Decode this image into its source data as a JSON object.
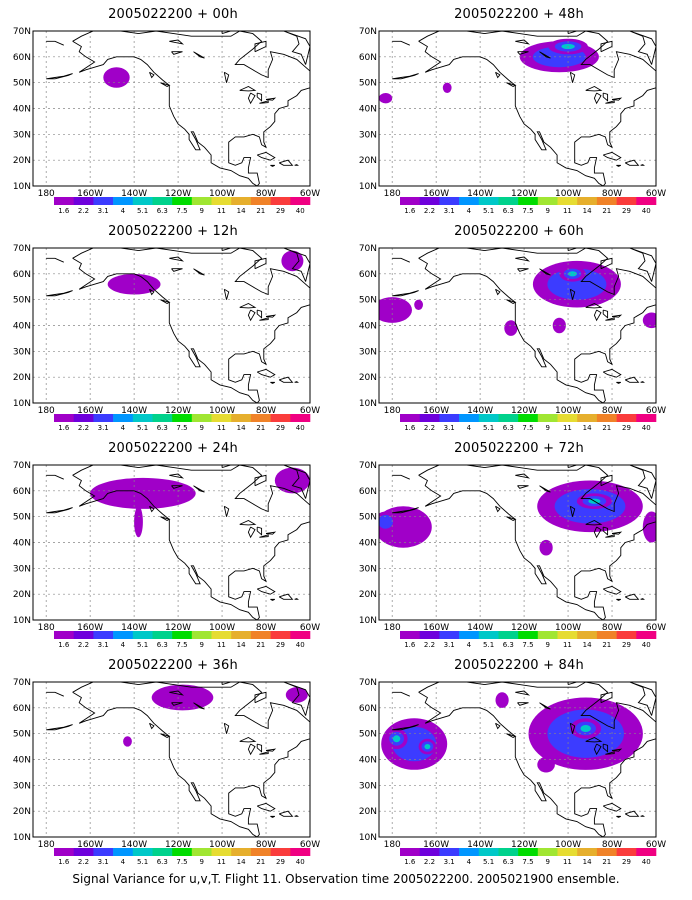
{
  "axes": {
    "lat_labels": [
      "70N",
      "60N",
      "50N",
      "40N",
      "30N",
      "20N",
      "10N"
    ],
    "lon_labels": [
      "180",
      "160W",
      "140W",
      "120W",
      "100W",
      "80W",
      "60W"
    ],
    "lon_range": [
      -186,
      -60
    ],
    "lat_range": [
      10,
      70
    ]
  },
  "colorbar": {
    "labels": [
      "1.6",
      "2.2",
      "3.1",
      "4",
      "5.1",
      "6.3",
      "7.5",
      "9",
      "11",
      "14",
      "21",
      "29",
      "40"
    ],
    "colors": [
      "#a000c8",
      "#6e00dc",
      "#3c3cff",
      "#0096ff",
      "#00c8c8",
      "#00d28c",
      "#00dc00",
      "#a0e632",
      "#e6dc32",
      "#e6af2d",
      "#f08228",
      "#fa3c3c",
      "#f00082"
    ]
  },
  "chart_data": [
    {
      "type": "heatmap",
      "title": "2005022200 + 00h",
      "blobs": [
        [
          -148,
          52,
          6,
          4,
          1
        ]
      ]
    },
    {
      "type": "heatmap",
      "title": "2005022200 + 48h",
      "blobs": [
        [
          -104,
          60,
          18,
          6,
          2
        ],
        [
          -100,
          64,
          9,
          3,
          3
        ],
        [
          -183,
          44,
          3,
          2,
          1
        ],
        [
          -155,
          48,
          2,
          2,
          1
        ]
      ]
    },
    {
      "type": "heatmap",
      "title": "2005022200 + 12h",
      "blobs": [
        [
          -140,
          56,
          12,
          4,
          1
        ],
        [
          -68,
          65,
          5,
          4,
          1
        ]
      ]
    },
    {
      "type": "heatmap",
      "title": "2005022200 + 60h",
      "blobs": [
        [
          -96,
          56,
          20,
          9,
          2
        ],
        [
          -98,
          60,
          6,
          3,
          3
        ],
        [
          -180,
          46,
          9,
          5,
          1
        ],
        [
          -168,
          48,
          2,
          2,
          1
        ],
        [
          -126,
          39,
          3,
          3,
          1
        ],
        [
          -104,
          40,
          3,
          3,
          1
        ],
        [
          -62,
          42,
          4,
          3,
          1
        ]
      ]
    },
    {
      "type": "heatmap",
      "title": "2005022200 + 24h",
      "blobs": [
        [
          -136,
          59,
          24,
          6,
          1
        ],
        [
          -138,
          48,
          2,
          6,
          1
        ],
        [
          -68,
          64,
          8,
          5,
          1
        ]
      ]
    },
    {
      "type": "heatmap",
      "title": "2005022200 + 72h",
      "blobs": [
        [
          -90,
          54,
          24,
          10,
          2
        ],
        [
          -88,
          56,
          8,
          3,
          3
        ],
        [
          -175,
          46,
          13,
          8,
          1
        ],
        [
          -183,
          48,
          5,
          4,
          2
        ],
        [
          -110,
          38,
          3,
          3,
          1
        ],
        [
          -62,
          46,
          4,
          6,
          1
        ]
      ]
    },
    {
      "type": "heatmap",
      "title": "2005022200 + 36h",
      "blobs": [
        [
          -118,
          64,
          14,
          5,
          1
        ],
        [
          -143,
          47,
          2,
          2,
          1
        ],
        [
          -66,
          65,
          5,
          3,
          1
        ]
      ]
    },
    {
      "type": "heatmap",
      "title": "2005022200 + 84h",
      "blobs": [
        [
          -92,
          50,
          26,
          14,
          2
        ],
        [
          -92,
          52,
          7,
          4,
          3
        ],
        [
          -170,
          46,
          15,
          10,
          2
        ],
        [
          -178,
          48,
          5,
          4,
          3
        ],
        [
          -164,
          45,
          4,
          3,
          3
        ],
        [
          -110,
          38,
          4,
          3,
          1
        ],
        [
          -130,
          63,
          3,
          3,
          1
        ]
      ]
    }
  ],
  "footer": "Signal Variance for u,v,T. Flight 11. Observation time 2005022200. 2005021900 ensemble."
}
